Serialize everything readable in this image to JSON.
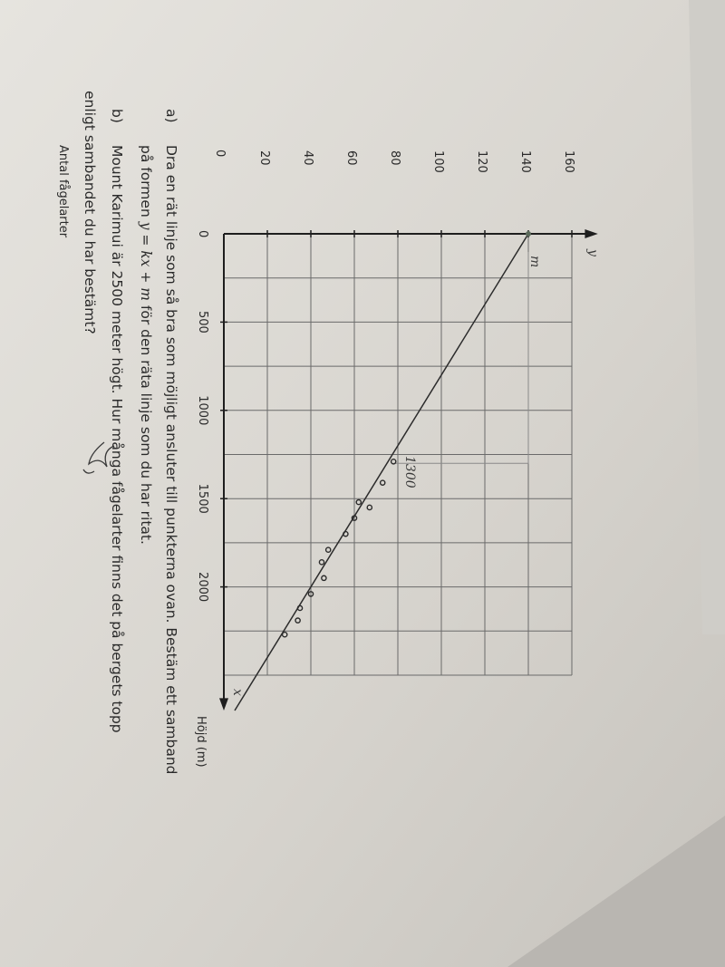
{
  "chart_data": {
    "type": "scatter",
    "ylabel": "Antal fågelarter",
    "xlabel": "Höjd (m)",
    "y_axis_letter": "y",
    "x_axis_letter": "x",
    "origin_labels": [
      "0",
      "0"
    ],
    "x_ticks": [
      "500",
      "1000",
      "1500",
      "2000"
    ],
    "x_tick_values": [
      500,
      1000,
      1500,
      2000
    ],
    "y_ticks": [
      "20",
      "40",
      "60",
      "80",
      "100",
      "120",
      "140",
      "160"
    ],
    "y_tick_values": [
      20,
      40,
      60,
      80,
      100,
      120,
      140,
      160
    ],
    "xlim": [
      0,
      2500
    ],
    "ylim": [
      0,
      160
    ],
    "grid": true,
    "points": [
      {
        "x": 1290,
        "y": 78
      },
      {
        "x": 1410,
        "y": 73
      },
      {
        "x": 1520,
        "y": 62
      },
      {
        "x": 1550,
        "y": 67
      },
      {
        "x": 1610,
        "y": 60
      },
      {
        "x": 1700,
        "y": 56
      },
      {
        "x": 1790,
        "y": 48
      },
      {
        "x": 1860,
        "y": 45
      },
      {
        "x": 1950,
        "y": 46
      },
      {
        "x": 2040,
        "y": 40
      },
      {
        "x": 2120,
        "y": 35
      },
      {
        "x": 2190,
        "y": 34
      },
      {
        "x": 2270,
        "y": 28
      }
    ],
    "fit_line": {
      "x0": 0,
      "y0": 140,
      "x1": 2700,
      "y1": 5
    },
    "handwritten_annotations": {
      "intercept_label": "m",
      "x_reading": "1300"
    }
  },
  "questions": {
    "a": {
      "marker": "a)",
      "line1": "Dra en rät linje som så bra som möjligt ansluter till punkterna ovan. Bestäm ett samband",
      "line2_pre": "på formen ",
      "formula_y": "y",
      "formula_eq": " = ",
      "formula_kx": "kx",
      "formula_plus": " + ",
      "formula_m": "m",
      "line2_post": " för den räta linje som du har ritat."
    },
    "b": {
      "marker": "b)",
      "line1": "Mount Karimui är 2500 meter högt. Hur många fågelarter finns det på bergets topp",
      "line2": "enligt sambandet du har bestämt?"
    }
  },
  "colors": {
    "paper": "#dcd9d3",
    "ink": "#2a2a2a",
    "grid": "#6a6a6a",
    "pencil": "#8a8a8a"
  }
}
